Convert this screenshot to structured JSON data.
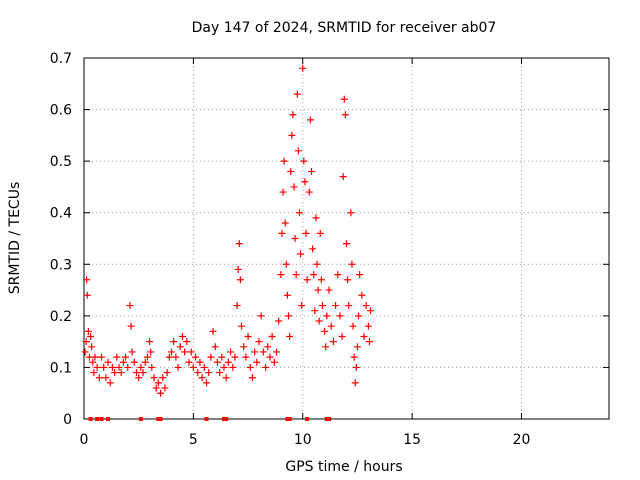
{
  "chart_data": {
    "type": "scatter",
    "title": "Day 147 of 2024, SRMTID for receiver ab07",
    "xlabel": "GPS time / hours",
    "ylabel": "SRMTID / TECUs",
    "xlim": [
      0,
      24
    ],
    "ylim": [
      0,
      0.7
    ],
    "xticks": [
      0,
      5,
      10,
      15,
      20
    ],
    "yticks": [
      0,
      0.1,
      0.2,
      0.3,
      0.4,
      0.5,
      0.6,
      0.7
    ],
    "xtick_labels": [
      "0",
      "5",
      "10",
      "15",
      "20"
    ],
    "ytick_labels": [
      "0",
      "0.1",
      "0.2",
      "0.3",
      "0.4",
      "0.5",
      "0.6",
      "0.7"
    ],
    "grid": true,
    "marker": "plus",
    "series": [
      {
        "name": "SRMTID",
        "color": "#ff0000",
        "points": [
          [
            0.05,
            0.13
          ],
          [
            0.1,
            0.15
          ],
          [
            0.12,
            0.27
          ],
          [
            0.15,
            0.24
          ],
          [
            0.2,
            0.17
          ],
          [
            0.25,
            0.12
          ],
          [
            0.3,
            0.16
          ],
          [
            0.35,
            0.14
          ],
          [
            0.4,
            0.11
          ],
          [
            0.45,
            0.09
          ],
          [
            0.5,
            0.12
          ],
          [
            0.6,
            0.1
          ],
          [
            0.7,
            0.08
          ],
          [
            0.8,
            0.12
          ],
          [
            0.9,
            0.1
          ],
          [
            1.0,
            0.08
          ],
          [
            1.1,
            0.11
          ],
          [
            1.2,
            0.07
          ],
          [
            1.3,
            0.1
          ],
          [
            1.4,
            0.09
          ],
          [
            1.5,
            0.12
          ],
          [
            1.6,
            0.1
          ],
          [
            1.7,
            0.09
          ],
          [
            1.8,
            0.11
          ],
          [
            1.9,
            0.12
          ],
          [
            2.0,
            0.1
          ],
          [
            2.1,
            0.22
          ],
          [
            2.15,
            0.18
          ],
          [
            2.2,
            0.13
          ],
          [
            2.3,
            0.11
          ],
          [
            2.4,
            0.09
          ],
          [
            2.5,
            0.08
          ],
          [
            2.6,
            0.1
          ],
          [
            2.7,
            0.09
          ],
          [
            2.8,
            0.11
          ],
          [
            2.9,
            0.12
          ],
          [
            3.0,
            0.15
          ],
          [
            3.05,
            0.13
          ],
          [
            3.1,
            0.1
          ],
          [
            3.2,
            0.08
          ],
          [
            3.3,
            0.06
          ],
          [
            3.4,
            0.07
          ],
          [
            3.5,
            0.05
          ],
          [
            3.6,
            0.08
          ],
          [
            3.7,
            0.06
          ],
          [
            3.8,
            0.09
          ],
          [
            3.9,
            0.12
          ],
          [
            4.0,
            0.13
          ],
          [
            4.1,
            0.15
          ],
          [
            4.2,
            0.12
          ],
          [
            4.3,
            0.1
          ],
          [
            4.4,
            0.14
          ],
          [
            4.5,
            0.16
          ],
          [
            4.6,
            0.13
          ],
          [
            4.7,
            0.15
          ],
          [
            4.8,
            0.11
          ],
          [
            4.9,
            0.13
          ],
          [
            5.0,
            0.1
          ],
          [
            5.1,
            0.12
          ],
          [
            5.2,
            0.09
          ],
          [
            5.3,
            0.11
          ],
          [
            5.4,
            0.08
          ],
          [
            5.5,
            0.1
          ],
          [
            5.6,
            0.07
          ],
          [
            5.7,
            0.09
          ],
          [
            5.8,
            0.12
          ],
          [
            5.9,
            0.17
          ],
          [
            6.0,
            0.14
          ],
          [
            6.1,
            0.11
          ],
          [
            6.2,
            0.09
          ],
          [
            6.3,
            0.12
          ],
          [
            6.4,
            0.1
          ],
          [
            6.5,
            0.08
          ],
          [
            6.6,
            0.11
          ],
          [
            6.7,
            0.13
          ],
          [
            6.8,
            0.1
          ],
          [
            6.9,
            0.12
          ],
          [
            7.0,
            0.22
          ],
          [
            7.05,
            0.29
          ],
          [
            7.1,
            0.34
          ],
          [
            7.15,
            0.27
          ],
          [
            7.2,
            0.18
          ],
          [
            7.3,
            0.14
          ],
          [
            7.4,
            0.12
          ],
          [
            7.5,
            0.16
          ],
          [
            7.6,
            0.1
          ],
          [
            7.7,
            0.08
          ],
          [
            7.8,
            0.13
          ],
          [
            7.9,
            0.11
          ],
          [
            8.0,
            0.15
          ],
          [
            8.1,
            0.2
          ],
          [
            8.2,
            0.13
          ],
          [
            8.3,
            0.1
          ],
          [
            8.4,
            0.14
          ],
          [
            8.5,
            0.12
          ],
          [
            8.6,
            0.16
          ],
          [
            8.7,
            0.11
          ],
          [
            8.8,
            0.13
          ],
          [
            8.9,
            0.19
          ],
          [
            9.0,
            0.28
          ],
          [
            9.05,
            0.36
          ],
          [
            9.1,
            0.44
          ],
          [
            9.15,
            0.5
          ],
          [
            9.2,
            0.38
          ],
          [
            9.25,
            0.3
          ],
          [
            9.3,
            0.24
          ],
          [
            9.35,
            0.2
          ],
          [
            9.4,
            0.16
          ],
          [
            9.45,
            0.48
          ],
          [
            9.5,
            0.55
          ],
          [
            9.55,
            0.59
          ],
          [
            9.6,
            0.45
          ],
          [
            9.65,
            0.35
          ],
          [
            9.7,
            0.28
          ],
          [
            9.75,
            0.63
          ],
          [
            9.8,
            0.52
          ],
          [
            9.85,
            0.4
          ],
          [
            9.9,
            0.32
          ],
          [
            9.95,
            0.22
          ],
          [
            10.0,
            0.68
          ],
          [
            10.05,
            0.5
          ],
          [
            10.1,
            0.46
          ],
          [
            10.15,
            0.36
          ],
          [
            10.2,
            0.27
          ],
          [
            10.3,
            0.44
          ],
          [
            10.35,
            0.58
          ],
          [
            10.4,
            0.48
          ],
          [
            10.45,
            0.33
          ],
          [
            10.5,
            0.28
          ],
          [
            10.55,
            0.21
          ],
          [
            10.6,
            0.39
          ],
          [
            10.65,
            0.3
          ],
          [
            10.7,
            0.25
          ],
          [
            10.75,
            0.19
          ],
          [
            10.8,
            0.36
          ],
          [
            10.85,
            0.27
          ],
          [
            10.9,
            0.22
          ],
          [
            11.0,
            0.17
          ],
          [
            11.05,
            0.14
          ],
          [
            11.1,
            0.2
          ],
          [
            11.2,
            0.25
          ],
          [
            11.3,
            0.18
          ],
          [
            11.4,
            0.15
          ],
          [
            11.5,
            0.22
          ],
          [
            11.6,
            0.28
          ],
          [
            11.7,
            0.2
          ],
          [
            11.8,
            0.16
          ],
          [
            11.85,
            0.47
          ],
          [
            11.9,
            0.62
          ],
          [
            11.95,
            0.59
          ],
          [
            12.0,
            0.34
          ],
          [
            12.05,
            0.27
          ],
          [
            12.1,
            0.22
          ],
          [
            12.2,
            0.4
          ],
          [
            12.25,
            0.3
          ],
          [
            12.3,
            0.18
          ],
          [
            12.35,
            0.12
          ],
          [
            12.4,
            0.07
          ],
          [
            12.45,
            0.1
          ],
          [
            12.5,
            0.14
          ],
          [
            12.55,
            0.2
          ],
          [
            12.6,
            0.28
          ],
          [
            12.7,
            0.24
          ],
          [
            12.8,
            0.16
          ],
          [
            12.9,
            0.22
          ],
          [
            13.0,
            0.18
          ],
          [
            13.05,
            0.15
          ],
          [
            13.1,
            0.21
          ]
        ]
      }
    ],
    "baseline_marks_x": [
      0.3,
      0.6,
      0.8,
      1.1,
      2.6,
      3.4,
      3.5,
      5.6,
      6.4,
      6.5,
      9.3,
      9.4,
      10.2,
      11.1,
      11.2
    ]
  }
}
